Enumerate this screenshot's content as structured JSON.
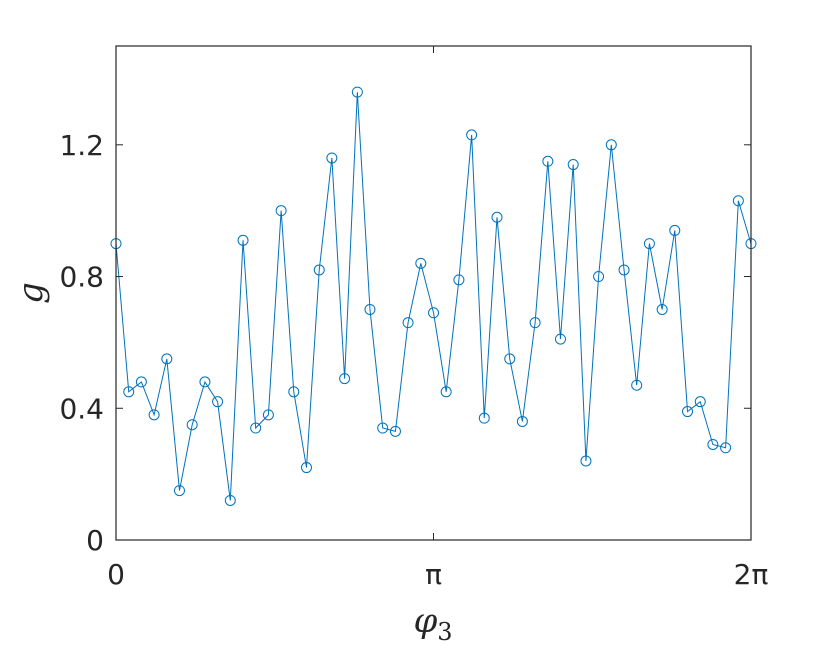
{
  "chart_data": {
    "type": "line",
    "marker": "circle",
    "color": "#0072BD",
    "xlabel": "φ",
    "xlabel_subscript": "3",
    "ylabel": "g",
    "xlim": [
      0,
      6.283185
    ],
    "ylim": [
      0,
      1.5
    ],
    "x_ticks": [
      {
        "value": 0,
        "label": "0"
      },
      {
        "value": 3.141593,
        "label": "π"
      },
      {
        "value": 6.283185,
        "label": "2π"
      }
    ],
    "y_ticks": [
      {
        "value": 0,
        "label": "0"
      },
      {
        "value": 0.4,
        "label": "0.4"
      },
      {
        "value": 0.8,
        "label": "0.8"
      },
      {
        "value": 1.2,
        "label": "1.2"
      }
    ],
    "grid": false,
    "series": [
      {
        "x": [
          0.0,
          0.126,
          0.251,
          0.377,
          0.503,
          0.628,
          0.754,
          0.88,
          1.005,
          1.131,
          1.257,
          1.382,
          1.508,
          1.634,
          1.759,
          1.885,
          2.011,
          2.136,
          2.262,
          2.388,
          2.513,
          2.639,
          2.765,
          2.89,
          3.016,
          3.142,
          3.267,
          3.393,
          3.519,
          3.644,
          3.77,
          3.896,
          4.021,
          4.147,
          4.273,
          4.398,
          4.524,
          4.65,
          4.775,
          4.901,
          5.027,
          5.152,
          5.278,
          5.404,
          5.529,
          5.655,
          5.781,
          5.906,
          6.032,
          6.158,
          6.283
        ],
        "y": [
          0.9,
          0.45,
          0.48,
          0.38,
          0.55,
          0.15,
          0.35,
          0.48,
          0.42,
          0.12,
          0.91,
          0.34,
          0.38,
          1.0,
          0.45,
          0.22,
          0.82,
          1.16,
          0.49,
          1.36,
          0.7,
          0.34,
          0.33,
          0.66,
          0.84,
          0.69,
          0.45,
          0.79,
          1.23,
          0.37,
          0.98,
          0.55,
          0.36,
          0.66,
          1.15,
          0.61,
          1.14,
          0.24,
          0.8,
          1.2,
          0.82,
          0.47,
          0.9,
          0.7,
          0.94,
          0.39,
          0.42,
          0.29,
          0.28,
          1.03,
          0.9
        ]
      }
    ]
  }
}
